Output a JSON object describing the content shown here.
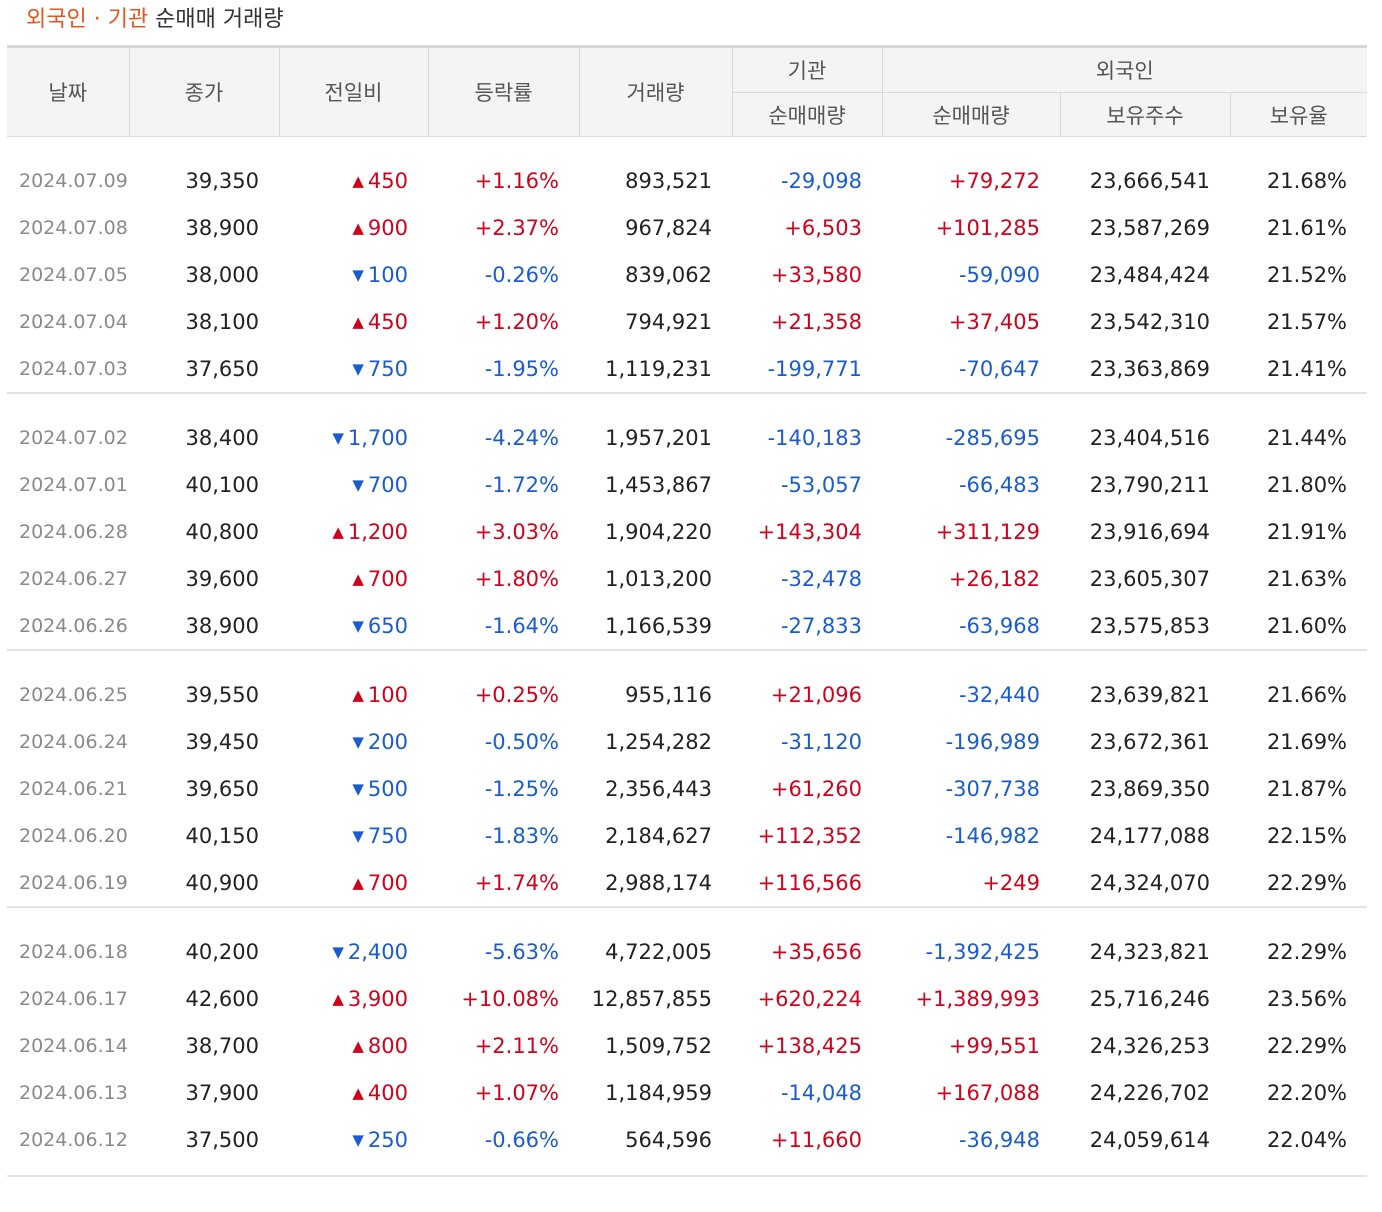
{
  "title": {
    "highlight": "외국인 · 기관",
    "rest": " 순매매 거래량"
  },
  "headers": {
    "date": "날짜",
    "close": "종가",
    "change": "전일비",
    "rate": "등락률",
    "volume": "거래량",
    "institution": "기관",
    "foreigner": "외국인",
    "inst_net": "순매매량",
    "foreign_net": "순매매량",
    "foreign_holding": "보유주수",
    "foreign_ratio": "보유율"
  },
  "colors": {
    "up": "#d0021b",
    "down": "#1a5ccf",
    "title_accent": "#e8551c"
  },
  "groups": [
    [
      {
        "date": "2024.07.09",
        "close": "39,350",
        "dir": "up",
        "change": "450",
        "rate": "+1.16%",
        "volume": "893,521",
        "inst": "-29,098",
        "foreign": "+79,272",
        "holding": "23,666,541",
        "ratio": "21.68%"
      },
      {
        "date": "2024.07.08",
        "close": "38,900",
        "dir": "up",
        "change": "900",
        "rate": "+2.37%",
        "volume": "967,824",
        "inst": "+6,503",
        "foreign": "+101,285",
        "holding": "23,587,269",
        "ratio": "21.61%"
      },
      {
        "date": "2024.07.05",
        "close": "38,000",
        "dir": "down",
        "change": "100",
        "rate": "-0.26%",
        "volume": "839,062",
        "inst": "+33,580",
        "foreign": "-59,090",
        "holding": "23,484,424",
        "ratio": "21.52%"
      },
      {
        "date": "2024.07.04",
        "close": "38,100",
        "dir": "up",
        "change": "450",
        "rate": "+1.20%",
        "volume": "794,921",
        "inst": "+21,358",
        "foreign": "+37,405",
        "holding": "23,542,310",
        "ratio": "21.57%"
      },
      {
        "date": "2024.07.03",
        "close": "37,650",
        "dir": "down",
        "change": "750",
        "rate": "-1.95%",
        "volume": "1,119,231",
        "inst": "-199,771",
        "foreign": "-70,647",
        "holding": "23,363,869",
        "ratio": "21.41%"
      }
    ],
    [
      {
        "date": "2024.07.02",
        "close": "38,400",
        "dir": "down",
        "change": "1,700",
        "rate": "-4.24%",
        "volume": "1,957,201",
        "inst": "-140,183",
        "foreign": "-285,695",
        "holding": "23,404,516",
        "ratio": "21.44%"
      },
      {
        "date": "2024.07.01",
        "close": "40,100",
        "dir": "down",
        "change": "700",
        "rate": "-1.72%",
        "volume": "1,453,867",
        "inst": "-53,057",
        "foreign": "-66,483",
        "holding": "23,790,211",
        "ratio": "21.80%"
      },
      {
        "date": "2024.06.28",
        "close": "40,800",
        "dir": "up",
        "change": "1,200",
        "rate": "+3.03%",
        "volume": "1,904,220",
        "inst": "+143,304",
        "foreign": "+311,129",
        "holding": "23,916,694",
        "ratio": "21.91%"
      },
      {
        "date": "2024.06.27",
        "close": "39,600",
        "dir": "up",
        "change": "700",
        "rate": "+1.80%",
        "volume": "1,013,200",
        "inst": "-32,478",
        "foreign": "+26,182",
        "holding": "23,605,307",
        "ratio": "21.63%"
      },
      {
        "date": "2024.06.26",
        "close": "38,900",
        "dir": "down",
        "change": "650",
        "rate": "-1.64%",
        "volume": "1,166,539",
        "inst": "-27,833",
        "foreign": "-63,968",
        "holding": "23,575,853",
        "ratio": "21.60%"
      }
    ],
    [
      {
        "date": "2024.06.25",
        "close": "39,550",
        "dir": "up",
        "change": "100",
        "rate": "+0.25%",
        "volume": "955,116",
        "inst": "+21,096",
        "foreign": "-32,440",
        "holding": "23,639,821",
        "ratio": "21.66%"
      },
      {
        "date": "2024.06.24",
        "close": "39,450",
        "dir": "down",
        "change": "200",
        "rate": "-0.50%",
        "volume": "1,254,282",
        "inst": "-31,120",
        "foreign": "-196,989",
        "holding": "23,672,361",
        "ratio": "21.69%"
      },
      {
        "date": "2024.06.21",
        "close": "39,650",
        "dir": "down",
        "change": "500",
        "rate": "-1.25%",
        "volume": "2,356,443",
        "inst": "+61,260",
        "foreign": "-307,738",
        "holding": "23,869,350",
        "ratio": "21.87%"
      },
      {
        "date": "2024.06.20",
        "close": "40,150",
        "dir": "down",
        "change": "750",
        "rate": "-1.83%",
        "volume": "2,184,627",
        "inst": "+112,352",
        "foreign": "-146,982",
        "holding": "24,177,088",
        "ratio": "22.15%"
      },
      {
        "date": "2024.06.19",
        "close": "40,900",
        "dir": "up",
        "change": "700",
        "rate": "+1.74%",
        "volume": "2,988,174",
        "inst": "+116,566",
        "foreign": "+249",
        "holding": "24,324,070",
        "ratio": "22.29%"
      }
    ],
    [
      {
        "date": "2024.06.18",
        "close": "40,200",
        "dir": "down",
        "change": "2,400",
        "rate": "-5.63%",
        "volume": "4,722,005",
        "inst": "+35,656",
        "foreign": "-1,392,425",
        "holding": "24,323,821",
        "ratio": "22.29%"
      },
      {
        "date": "2024.06.17",
        "close": "42,600",
        "dir": "up",
        "change": "3,900",
        "rate": "+10.08%",
        "volume": "12,857,855",
        "inst": "+620,224",
        "foreign": "+1,389,993",
        "holding": "25,716,246",
        "ratio": "23.56%"
      },
      {
        "date": "2024.06.14",
        "close": "38,700",
        "dir": "up",
        "change": "800",
        "rate": "+2.11%",
        "volume": "1,509,752",
        "inst": "+138,425",
        "foreign": "+99,551",
        "holding": "24,326,253",
        "ratio": "22.29%"
      },
      {
        "date": "2024.06.13",
        "close": "37,900",
        "dir": "up",
        "change": "400",
        "rate": "+1.07%",
        "volume": "1,184,959",
        "inst": "-14,048",
        "foreign": "+167,088",
        "holding": "24,226,702",
        "ratio": "22.20%"
      },
      {
        "date": "2024.06.12",
        "close": "37,500",
        "dir": "down",
        "change": "250",
        "rate": "-0.66%",
        "volume": "564,596",
        "inst": "+11,660",
        "foreign": "-36,948",
        "holding": "24,059,614",
        "ratio": "22.04%"
      }
    ]
  ]
}
